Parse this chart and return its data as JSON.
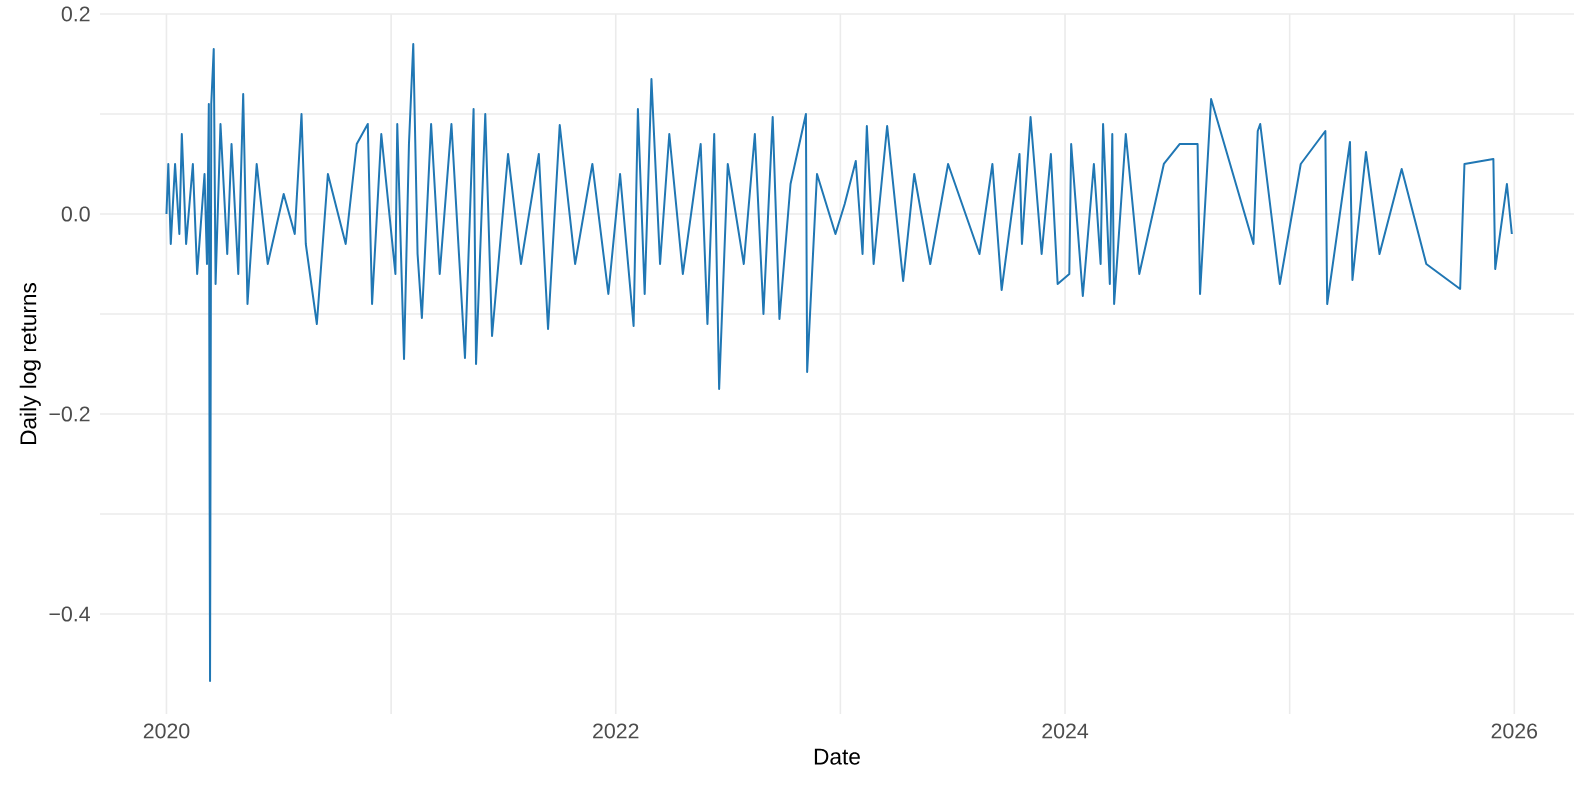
{
  "chart_data": {
    "type": "line",
    "xlabel": "Date",
    "ylabel": "Daily log returns",
    "xlim": [
      "2019-09-15",
      "2026-04-08"
    ],
    "ylim": [
      -0.5,
      0.2
    ],
    "xticks": [
      "2020",
      {
        "value": "2021",
        "label": null
      },
      "2022",
      {
        "value": "2023",
        "label": null
      },
      "2024",
      {
        "value": "2025",
        "label": null
      },
      "2026"
    ],
    "yticks": [
      {
        "value": -0.4,
        "label": "−0.4"
      },
      {
        "value": -0.3,
        "label": null
      },
      {
        "value": -0.2,
        "label": "−0.2"
      },
      {
        "value": -0.1,
        "label": null
      },
      {
        "value": 0.0,
        "label": "0.0"
      },
      {
        "value": 0.1,
        "label": null
      },
      0.2
    ],
    "grid": true,
    "x": [
      "2020-01-01",
      "2020-01-04",
      "2020-01-08",
      "2020-01-15",
      "2020-01-22",
      "2020-01-26",
      "2020-02-02",
      "2020-02-13",
      "2020-02-20",
      "2020-03-03",
      "2020-03-07",
      "2020-03-10",
      "2020-03-12",
      "2020-03-14",
      "2020-03-18",
      "2020-03-21",
      "2020-03-29",
      "2020-04-09",
      "2020-04-16",
      "2020-04-27",
      "2020-05-05",
      "2020-05-12",
      "2020-05-27",
      "2020-06-14",
      "2020-07-10",
      "2020-07-28",
      "2020-08-08",
      "2020-08-15",
      "2020-09-02",
      "2020-09-20",
      "2020-10-19",
      "2020-11-06",
      "2020-11-24",
      "2020-12-01",
      "2020-12-16",
      "2021-01-08",
      "2021-01-11",
      "2021-01-22",
      "2021-01-30",
      "2021-02-06",
      "2021-02-13",
      "2021-02-20",
      "2021-03-07",
      "2021-03-21",
      "2021-04-09",
      "2021-05-01",
      "2021-05-15",
      "2021-05-19",
      "2021-06-03",
      "2021-06-14",
      "2021-07-10",
      "2021-07-31",
      "2021-08-29",
      "2021-09-13",
      "2021-10-02",
      "2021-10-27",
      "2021-11-24",
      "2021-12-20",
      "2022-01-08",
      "2022-01-30",
      "2022-02-06",
      "2022-02-17",
      "2022-02-28",
      "2022-03-14",
      "2022-03-29",
      "2022-04-20",
      "2022-05-19",
      "2022-05-30",
      "2022-06-10",
      "2022-06-18",
      "2022-07-02",
      "2022-07-28",
      "2022-08-15",
      "2022-08-29",
      "2022-09-13",
      "2022-09-24",
      "2022-10-12",
      "2022-11-06",
      "2022-11-08",
      "2022-11-24",
      "2022-12-24",
      "2023-01-08",
      "2023-01-26",
      "2023-02-06",
      "2023-02-13",
      "2023-02-24",
      "2023-03-18",
      "2023-04-13",
      "2023-05-01",
      "2023-05-27",
      "2023-06-25",
      "2023-08-15",
      "2023-09-05",
      "2023-09-20",
      "2023-10-19",
      "2023-10-23",
      "2023-11-06",
      "2023-11-24",
      "2023-12-09",
      "2023-12-20",
      "2024-01-08",
      "2024-01-11",
      "2024-01-30",
      "2024-02-17",
      "2024-02-28",
      "2024-03-03",
      "2024-03-14",
      "2024-03-18",
      "2024-03-21",
      "2024-04-09",
      "2024-05-01",
      "2024-06-10",
      "2024-07-06",
      "2024-08-04",
      "2024-08-08",
      "2024-08-26",
      "2024-11-03",
      "2024-11-10",
      "2024-11-14",
      "2024-12-16",
      "2025-01-19",
      "2025-02-28",
      "2025-03-03",
      "2025-04-09",
      "2025-04-13",
      "2025-05-05",
      "2025-05-27",
      "2025-07-02",
      "2025-08-11",
      "2025-10-05",
      "2025-10-12",
      "2025-11-28",
      "2025-12-01",
      "2025-12-20",
      "2025-12-28"
    ],
    "series": [
      {
        "color": "#2077b4",
        "values": [
          0.0,
          0.05,
          -0.03,
          0.05,
          -0.02,
          0.08,
          -0.03,
          0.05,
          -0.06,
          0.04,
          -0.05,
          0.11,
          -0.467,
          0.11,
          0.165,
          -0.07,
          0.09,
          -0.04,
          0.07,
          -0.06,
          0.12,
          -0.09,
          0.05,
          -0.05,
          0.02,
          -0.02,
          0.1,
          -0.03,
          -0.11,
          0.04,
          -0.03,
          0.07,
          0.09,
          -0.09,
          0.08,
          -0.06,
          0.09,
          -0.145,
          0.07,
          0.17,
          -0.04,
          -0.104,
          0.09,
          -0.06,
          0.09,
          -0.144,
          0.105,
          -0.15,
          0.1,
          -0.122,
          0.06,
          -0.05,
          0.06,
          -0.115,
          0.089,
          -0.05,
          0.05,
          -0.08,
          0.04,
          -0.112,
          0.105,
          -0.08,
          0.135,
          -0.05,
          0.08,
          -0.06,
          0.07,
          -0.11,
          0.08,
          -0.175,
          0.05,
          -0.05,
          0.08,
          -0.1,
          0.097,
          -0.105,
          0.03,
          0.1,
          -0.158,
          0.04,
          -0.02,
          0.01,
          0.053,
          -0.04,
          0.088,
          -0.05,
          0.088,
          -0.067,
          0.04,
          -0.05,
          0.05,
          -0.04,
          0.05,
          -0.076,
          0.06,
          -0.03,
          0.097,
          -0.04,
          0.06,
          -0.07,
          -0.06,
          0.07,
          -0.082,
          0.05,
          -0.05,
          0.09,
          -0.07,
          0.08,
          -0.09,
          0.08,
          -0.06,
          0.05,
          0.07,
          0.07,
          -0.08,
          0.115,
          -0.03,
          0.083,
          0.09,
          -0.07,
          0.05,
          0.083,
          -0.09,
          0.072,
          -0.066,
          0.062,
          -0.04,
          0.045,
          -0.05,
          -0.075,
          0.05,
          0.055,
          -0.055,
          0.03,
          -0.02
        ]
      }
    ]
  }
}
